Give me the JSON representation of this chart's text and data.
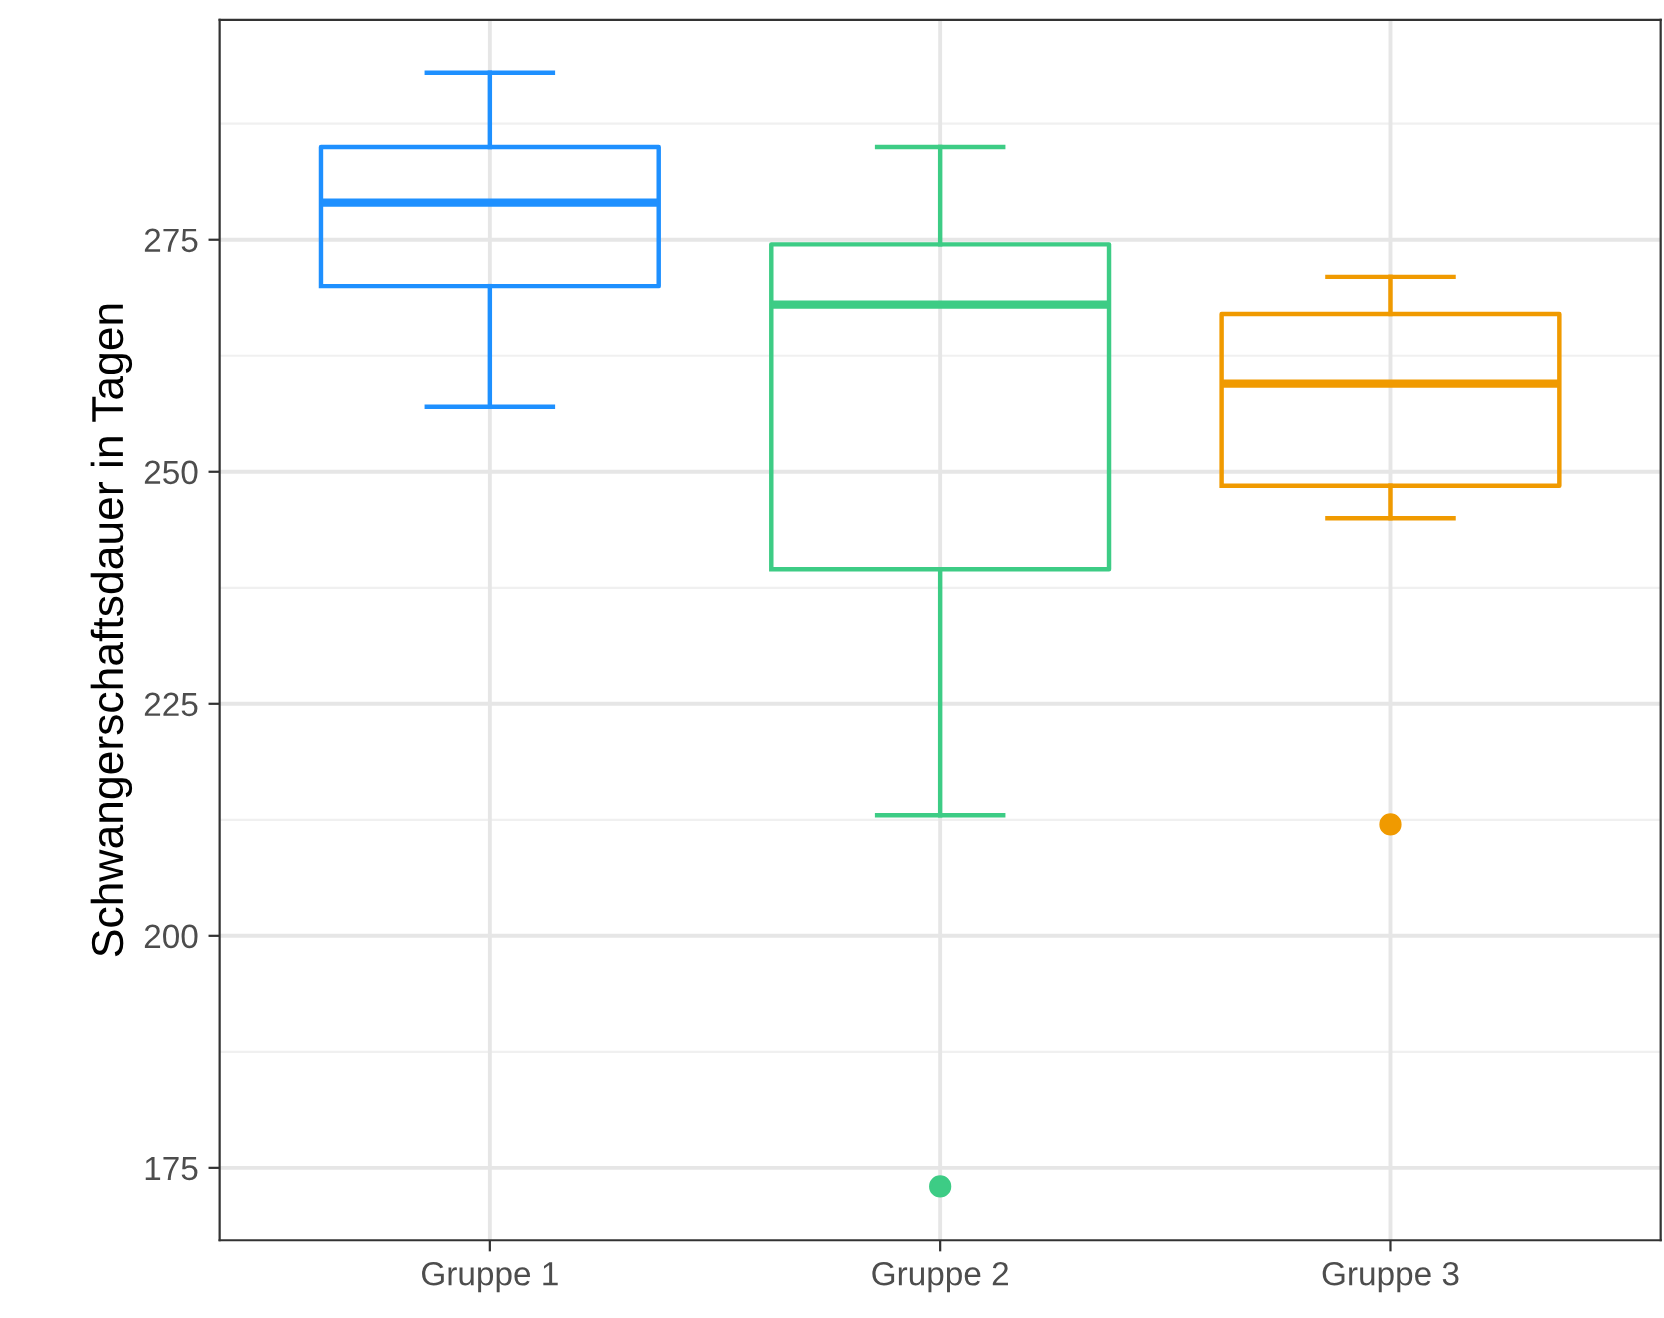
{
  "chart_data": {
    "type": "box",
    "ylabel": "Schwangerschaftsdauer in Tagen",
    "categories": [
      "Gruppe 1",
      "Gruppe 2",
      "Gruppe 3"
    ],
    "boxes": [
      {
        "low": 257,
        "q1": 270,
        "median": 279,
        "q3": 285,
        "high": 293
      },
      {
        "low": 213,
        "q1": 239.5,
        "median": 268,
        "q3": 274.5,
        "high": 285,
        "outliers": [
          173
        ]
      },
      {
        "low": 245,
        "q1": 248.5,
        "median": 259.5,
        "q3": 267,
        "high": 271,
        "outliers": [
          212
        ]
      }
    ],
    "colors": [
      "#1e90ff",
      "#3dcc85",
      "#f09a00"
    ],
    "ylim": [
      167.2,
      298.7
    ],
    "yticks": [
      175,
      200,
      225,
      250,
      275
    ],
    "grid": true
  }
}
